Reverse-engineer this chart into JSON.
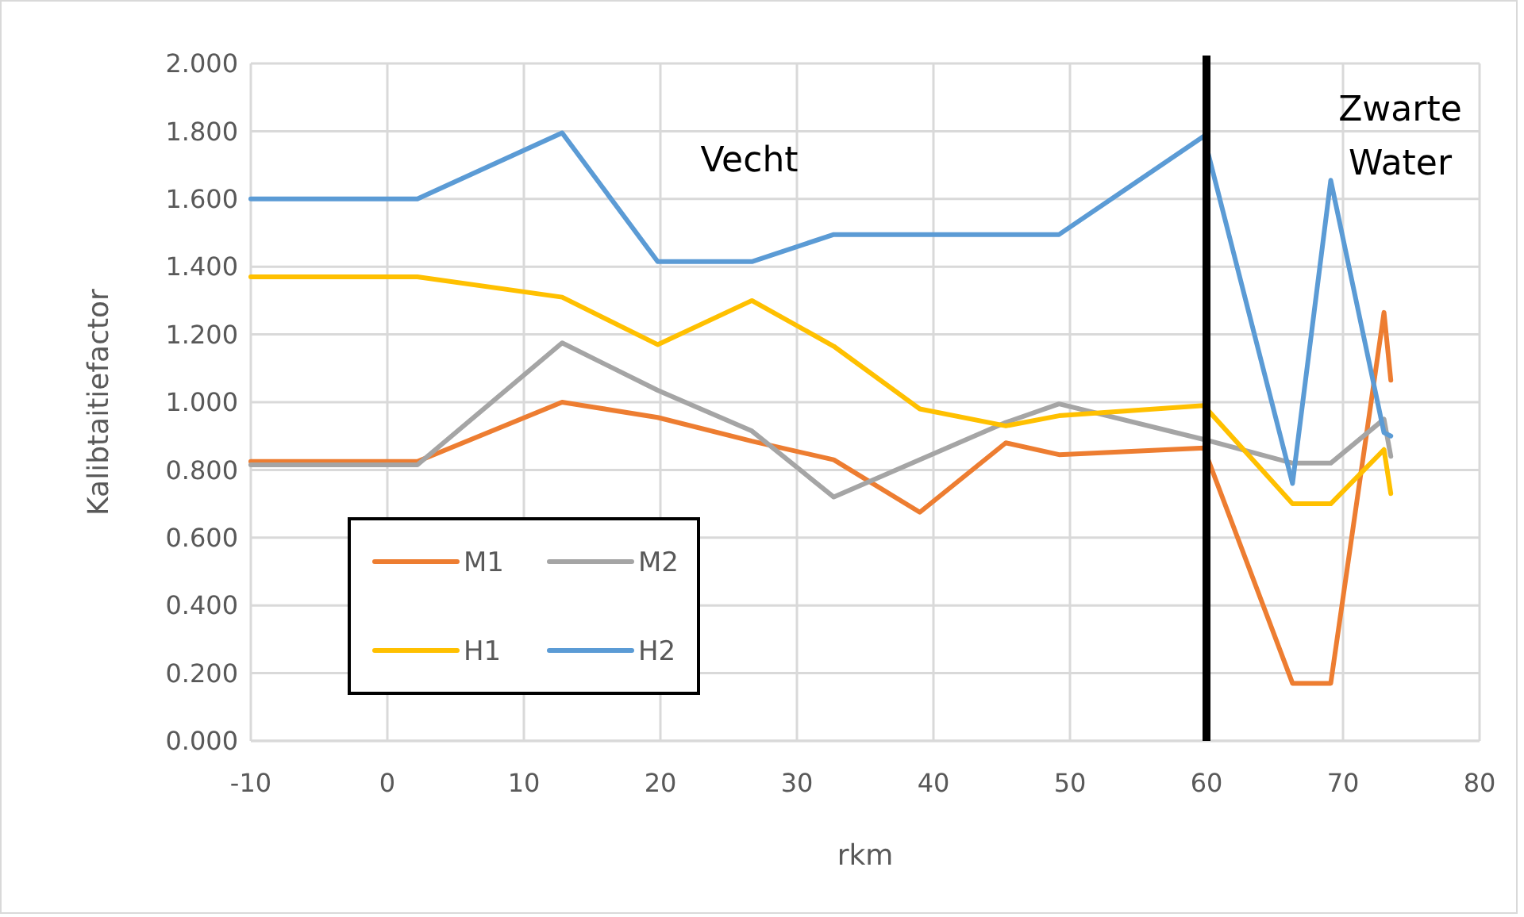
{
  "chart_data": {
    "type": "line",
    "xlabel": "rkm",
    "ylabel": "Kalibtaitiefactor",
    "x": [
      -10,
      2.2,
      12.8,
      19.8,
      26.7,
      32.7,
      39,
      45.3,
      49.2,
      59.8,
      66.3,
      69.1,
      73,
      73.5
    ],
    "series": [
      {
        "name": "M1",
        "color": "#ed7d31",
        "values": [
          0.825,
          0.825,
          1.0,
          0.955,
          0.885,
          0.83,
          0.675,
          0.88,
          0.845,
          0.865,
          0.17,
          0.17,
          1.265,
          1.065
        ]
      },
      {
        "name": "M2",
        "color": "#a5a5a5",
        "values": [
          0.815,
          0.815,
          1.175,
          1.035,
          0.915,
          0.72,
          0.83,
          0.94,
          0.995,
          0.89,
          0.82,
          0.82,
          0.95,
          0.84
        ]
      },
      {
        "name": "H1",
        "color": "#ffc000",
        "values": [
          1.37,
          1.37,
          1.31,
          1.17,
          1.3,
          1.165,
          0.98,
          0.93,
          0.96,
          0.99,
          0.7,
          0.7,
          0.86,
          0.73
        ]
      },
      {
        "name": "H2",
        "color": "#5b9bd5",
        "values": [
          1.6,
          1.6,
          1.795,
          1.415,
          1.415,
          1.495,
          1.495,
          1.495,
          1.495,
          1.785,
          0.76,
          1.655,
          0.91,
          0.9
        ]
      }
    ],
    "xlim": [
      -10,
      80
    ],
    "xticks": [
      -10,
      0,
      10,
      20,
      30,
      40,
      50,
      60,
      70,
      80
    ],
    "ylim": [
      0,
      2
    ],
    "yticks": [
      {
        "value": 0,
        "label": "0.000"
      },
      {
        "value": 0.2,
        "label": "0.200"
      },
      {
        "value": 0.4,
        "label": "0.400"
      },
      {
        "value": 0.6,
        "label": "0.600"
      },
      {
        "value": 0.8,
        "label": "0.800"
      },
      {
        "value": 1,
        "label": "1.000"
      },
      {
        "value": 1.2,
        "label": "1.200"
      },
      {
        "value": 1.4,
        "label": "1.400"
      },
      {
        "value": 1.6,
        "label": "1.600"
      },
      {
        "value": 1.8,
        "label": "1.800"
      },
      {
        "value": 2,
        "label": "2.000"
      }
    ],
    "grid": true,
    "legend": "bottom left",
    "marker": "none",
    "line_style": "solid",
    "ref_lines": [
      {
        "axis": "x",
        "value": 60,
        "color": "#000000"
      }
    ],
    "annotations": [
      "Vecht",
      "Zwarte Water"
    ]
  }
}
